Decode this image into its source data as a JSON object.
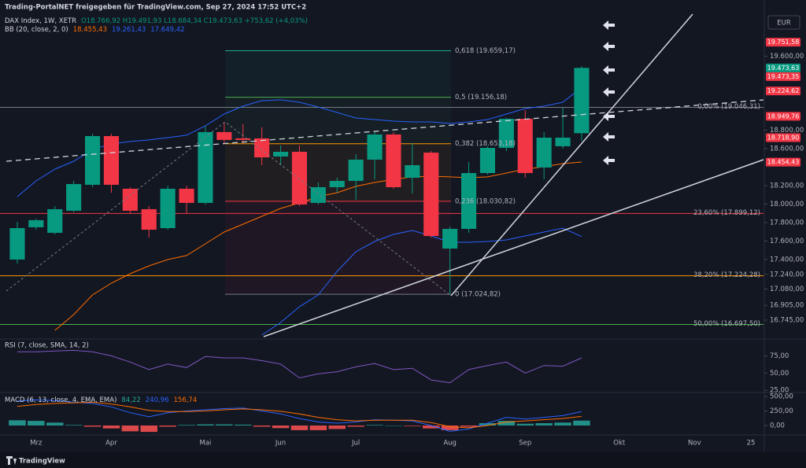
{
  "source": "Trading-PortalNET freigegeben für TradingView.com, Sep 27, 2024 17:52 UTC+2",
  "currency": "EUR",
  "brand": "TradingView",
  "chart_data": [
    {
      "type": "candlestick",
      "title": "DAX Index, 1W, XETR",
      "subtitle": "O18.766,92 H19.491,93 L18.684,34 C19.473,63 +753,62 (+4,03%)",
      "categories": [
        null,
        "Mrz",
        null,
        null,
        null,
        "Apr",
        null,
        null,
        null,
        null,
        "Mai",
        null,
        null,
        null,
        "Jun",
        null,
        null,
        null,
        "Jul",
        null,
        null,
        null,
        null,
        "Aug",
        null,
        null,
        null,
        "Sep",
        null,
        null,
        null,
        null,
        "Okt",
        null,
        null,
        null,
        "Nov",
        null,
        null,
        "25"
      ],
      "open": [
        17400,
        17749,
        17689,
        17928,
        18209,
        18736,
        18166,
        17945,
        17740,
        18166,
        18013,
        18779,
        18711,
        18711,
        18515,
        18566,
        18013,
        18183,
        18251,
        18481,
        18753,
        18285,
        18557,
        17519,
        17732,
        18336,
        18608,
        18923,
        18396,
        18626,
        18766.92,
        null,
        null,
        null,
        null,
        null,
        null,
        null,
        null,
        null
      ],
      "high": [
        17809,
        17843,
        17979,
        18251,
        18762,
        18762,
        18183,
        17979,
        18200,
        18200,
        18847,
        18889,
        18864,
        18830,
        18634,
        18634,
        18234,
        18285,
        18541,
        18779,
        18779,
        18660,
        18574,
        17757,
        18455,
        18626,
        18932,
        19017,
        18779,
        19043,
        19491.93,
        null,
        null,
        null,
        null,
        null,
        null,
        null,
        null,
        null
      ],
      "low": [
        17357,
        17723,
        17672,
        17911,
        18183,
        18123,
        17894,
        17638,
        17723,
        17894,
        17996,
        18660,
        18660,
        18421,
        18421,
        17979,
        17996,
        18123,
        18047,
        18268,
        18166,
        18115,
        17638,
        17024.82,
        17689,
        18319,
        18574,
        18285,
        18268,
        18600,
        18684.34,
        null,
        null,
        null,
        null,
        null,
        null,
        null,
        null,
        null
      ],
      "close": [
        17740,
        17826,
        17945,
        18217,
        18736,
        18209,
        17928,
        17723,
        18166,
        18013,
        18779,
        18694,
        18694,
        18506,
        18566,
        17996,
        18183,
        18251,
        18481,
        18753,
        18183,
        18421,
        17655,
        17732,
        18336,
        18608,
        18923,
        18336,
        18719,
        18719,
        19473.63,
        null,
        null,
        null,
        null,
        null,
        null,
        null,
        null,
        null
      ],
      "up_color": "#089981",
      "down_color": "#f23645",
      "ylim": [
        16566,
        20055
      ],
      "yticks": [
        {
          "value": 19600,
          "label": "19.600,00"
        },
        {
          "value": 18800,
          "label": "18.800,00"
        },
        {
          "value": 18600,
          "label": "18.600,00"
        },
        {
          "value": 18200,
          "label": "18.200,00"
        },
        {
          "value": 18000,
          "label": "18.000,00"
        },
        {
          "value": 17800,
          "label": "17.800,00"
        },
        {
          "value": 17600,
          "label": "17.600,00"
        },
        {
          "value": 17400,
          "label": "17.400,00"
        },
        {
          "value": 17240,
          "label": "17.240,00"
        },
        {
          "value": 17080,
          "label": "17.080,00"
        },
        {
          "value": 16905,
          "label": "16.905,00"
        },
        {
          "value": 16745,
          "label": "16.745,00"
        }
      ],
      "indicator": "BB (20, close, 2, 0)",
      "overlays": [
        {
          "color": "#ff6d00",
          "last_label": "18.455,43",
          "values": [
            null,
            null,
            16634,
            16804,
            17017,
            17145,
            17247,
            17332,
            17400,
            17443,
            17570,
            17698,
            17783,
            17868,
            17953,
            18013,
            18081,
            18123,
            18192,
            18234,
            18268,
            18294,
            18302,
            18294,
            18285,
            18294,
            18336,
            18379,
            18404,
            18438,
            18455.43,
            null,
            null,
            null,
            null,
            null,
            null,
            null,
            null,
            null
          ]
        },
        {
          "color": "#2962ff",
          "last_label": "19.261,43",
          "values": [
            18081,
            18251,
            18379,
            18464,
            18592,
            18651,
            18677,
            18694,
            18719,
            18745,
            18847,
            18974,
            19060,
            19119,
            19128,
            19102,
            19051,
            18991,
            18932,
            18915,
            18898,
            18889,
            18889,
            18872,
            18889,
            18915,
            18974,
            19034,
            19060,
            19102,
            19261.43,
            null,
            null,
            null,
            null,
            null,
            null,
            null,
            null,
            null
          ]
        },
        {
          "color": "#2962ff",
          "last_label": "17.649,42",
          "values": [
            null,
            null,
            null,
            null,
            null,
            null,
            null,
            null,
            null,
            null,
            null,
            null,
            null,
            16583,
            16719,
            16889,
            17017,
            17272,
            17485,
            17596,
            17672,
            17715,
            17655,
            17587,
            17587,
            17596,
            17613,
            17655,
            17698,
            17740,
            17649.42,
            null,
            null,
            null,
            null,
            null,
            null,
            null,
            null,
            null
          ]
        }
      ],
      "fibs": [
        {
          "levels": [
            {
              "value": 19659.17,
              "label": "0,618 (19.659,17)",
              "color": "#22ab94"
            },
            {
              "value": 19156.18,
              "label": "0,5 (19.156,18)",
              "color": "#4caf50"
            },
            {
              "value": 18653.18,
              "label": "0,382 (18.653,18)",
              "color": "#ff9800"
            },
            {
              "value": 18030.82,
              "label": "0,236 (18.030,82)",
              "color": "#f23645"
            },
            {
              "value": 17024.82,
              "label": "0 (17.024,82)",
              "color": "#787b86"
            }
          ]
        },
        {
          "levels": [
            {
              "value": 19046.31,
              "label": "0,00% (19.046,31)",
              "color": "#787b86"
            },
            {
              "value": 17899.12,
              "label": "23,60% (17.899,12)",
              "color": "#f23645"
            },
            {
              "value": 17224.28,
              "label": "38,20% (17.224,28)",
              "color": "#ff9800"
            },
            {
              "value": 16697.5,
              "label": "50,00% (16.697,50)",
              "color": "#4caf50"
            }
          ]
        }
      ],
      "price_labels": [
        {
          "value": 19751.58,
          "label": "19.751,58",
          "color": "#f23645"
        },
        {
          "value": 19473.63,
          "label": "19.473,63",
          "color": "#089981"
        },
        {
          "value": 19473.35,
          "label": "19.473,35",
          "color": "#f23645"
        },
        {
          "value": 19224.62,
          "label": "19.224,62",
          "color": "#f23645"
        },
        {
          "value": 18949.76,
          "label": "18.949,76",
          "color": "#f23645"
        },
        {
          "value": 18718.9,
          "label": "18.718,90",
          "color": "#f23645"
        },
        {
          "value": 18454.43,
          "label": "18.454,43",
          "color": "#f23645"
        }
      ]
    },
    {
      "type": "line",
      "title": "RSI (7, close, SMA, 14, 2)",
      "series": [
        {
          "color": "#7e57c2",
          "values": [
            81,
            81,
            82,
            83,
            81,
            75,
            66,
            55,
            63,
            58,
            74,
            72,
            72,
            68,
            63,
            43,
            49,
            52,
            59,
            64,
            55,
            57,
            40,
            36,
            55,
            61,
            66,
            50,
            61,
            60,
            72,
            null,
            null,
            null,
            null,
            null,
            null,
            null,
            null,
            null
          ]
        }
      ],
      "ylim": [
        23,
        96
      ],
      "yticks": [
        {
          "value": 75,
          "label": "75,00"
        },
        {
          "value": 50,
          "label": "50,00"
        },
        {
          "value": 25,
          "label": "25,00"
        }
      ]
    },
    {
      "type": "combo",
      "title": "MACD (6, 13, close, 4, EMA, EMA)",
      "series": [
        {
          "kind": "bar",
          "color": "#26a69a",
          "down_color": "#ff5252",
          "last_label": "84,22",
          "values": [
            90,
            80,
            50,
            10,
            -20,
            -50,
            -100,
            -110,
            -20,
            10,
            20,
            20,
            15,
            -20,
            -45,
            -80,
            -80,
            -60,
            -20,
            10,
            0,
            -10,
            -50,
            -80,
            -20,
            40,
            80,
            30,
            40,
            50,
            84.22,
            null,
            null,
            null,
            null,
            null,
            null,
            null,
            null,
            null
          ]
        },
        {
          "kind": "line",
          "color": "#2962ff",
          "last_label": "240,96",
          "values": [
            420,
            440,
            430,
            400,
            380,
            320,
            220,
            150,
            220,
            250,
            270,
            290,
            300,
            250,
            200,
            120,
            60,
            40,
            60,
            100,
            90,
            80,
            0,
            -100,
            -60,
            40,
            140,
            110,
            140,
            170,
            240.96,
            null,
            null,
            null,
            null,
            null,
            null,
            null,
            null,
            null
          ]
        },
        {
          "kind": "line",
          "color": "#ff6d00",
          "last_label": "156,74",
          "values": [
            330,
            360,
            380,
            390,
            400,
            370,
            320,
            260,
            240,
            240,
            250,
            270,
            285,
            270,
            245,
            200,
            140,
            100,
            80,
            90,
            90,
            90,
            50,
            -20,
            -40,
            0,
            60,
            80,
            100,
            120,
            156.74,
            null,
            null,
            null,
            null,
            null,
            null,
            null,
            null,
            null
          ]
        }
      ],
      "ylim": [
        -149,
        554
      ],
      "yticks": [
        {
          "value": 500,
          "label": "500,00"
        },
        {
          "value": 250,
          "label": "250,00"
        },
        {
          "value": 0,
          "label": "0,00"
        }
      ]
    }
  ]
}
